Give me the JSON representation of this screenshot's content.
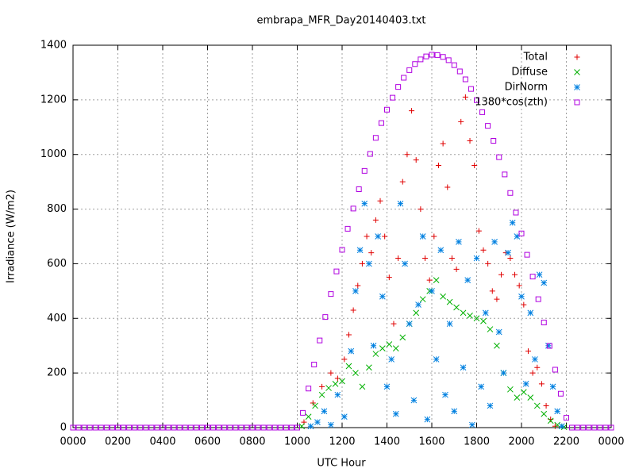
{
  "chart_data": {
    "type": "scatter",
    "title": "embrapa_MFR_Day20140403.txt",
    "xlabel": "UTC Hour",
    "ylabel": "Irradiance (W/m2)",
    "xlim": [
      0,
      24
    ],
    "ylim": [
      0,
      1400
    ],
    "xticks": [
      {
        "value": 0,
        "label": "0000"
      },
      {
        "value": 2,
        "label": "0200"
      },
      {
        "value": 4,
        "label": "0400"
      },
      {
        "value": 6,
        "label": "0600"
      },
      {
        "value": 8,
        "label": "0800"
      },
      {
        "value": 10,
        "label": "1000"
      },
      {
        "value": 12,
        "label": "1200"
      },
      {
        "value": 14,
        "label": "1400"
      },
      {
        "value": 16,
        "label": "1600"
      },
      {
        "value": 18,
        "label": "1800"
      },
      {
        "value": 20,
        "label": "2000"
      },
      {
        "value": 22,
        "label": "2200"
      },
      {
        "value": 24,
        "label": "0000"
      }
    ],
    "yticks": [
      0,
      200,
      400,
      600,
      800,
      1000,
      1200,
      1400
    ],
    "grid": true,
    "legend": "top-right",
    "series": [
      {
        "name": "Total",
        "color": "#e00000",
        "marker": "plus",
        "x": [
          10.3,
          10.7,
          11.1,
          11.5,
          11.8,
          12.1,
          12.3,
          12.5,
          12.7,
          12.9,
          13.1,
          13.3,
          13.5,
          13.7,
          13.9,
          14.1,
          14.3,
          14.5,
          14.7,
          14.9,
          15.1,
          15.3,
          15.5,
          15.7,
          15.9,
          16.1,
          16.3,
          16.5,
          16.7,
          16.9,
          17.1,
          17.3,
          17.5,
          17.7,
          17.9,
          18.1,
          18.3,
          18.5,
          18.7,
          18.9,
          19.1,
          19.3,
          19.5,
          19.7,
          19.9,
          20.1,
          20.3,
          20.5,
          20.7,
          20.9,
          21.1,
          21.3,
          21.5
        ],
        "values": [
          20,
          90,
          150,
          200,
          180,
          250,
          340,
          430,
          520,
          600,
          700,
          640,
          760,
          830,
          700,
          550,
          380,
          620,
          900,
          1000,
          1160,
          980,
          800,
          620,
          540,
          700,
          960,
          1040,
          880,
          620,
          580,
          1120,
          1210,
          1050,
          960,
          720,
          650,
          600,
          500,
          470,
          560,
          640,
          620,
          560,
          520,
          450,
          280,
          200,
          220,
          160,
          80,
          30,
          5
        ]
      },
      {
        "name": "Diffuse",
        "color": "#00b000",
        "marker": "cross",
        "x": [
          10.2,
          10.5,
          10.8,
          11.1,
          11.4,
          11.7,
          12,
          12.3,
          12.6,
          12.9,
          13.2,
          13.5,
          13.8,
          14.1,
          14.4,
          14.7,
          15,
          15.3,
          15.6,
          15.9,
          16.2,
          16.5,
          16.8,
          17.1,
          17.4,
          17.7,
          18,
          18.3,
          18.6,
          18.9,
          19.2,
          19.5,
          19.8,
          20.1,
          20.4,
          20.7,
          21,
          21.3,
          21.6,
          21.9
        ],
        "values": [
          5,
          40,
          80,
          120,
          145,
          160,
          170,
          225,
          200,
          150,
          220,
          270,
          290,
          305,
          290,
          330,
          380,
          420,
          470,
          500,
          540,
          480,
          460,
          440,
          420,
          410,
          400,
          390,
          360,
          300,
          200,
          140,
          110,
          130,
          110,
          80,
          50,
          25,
          10,
          2
        ]
      },
      {
        "name": "DirNorm",
        "color": "#0080e0",
        "marker": "star",
        "x": [
          10.6,
          10.9,
          11.2,
          11.5,
          11.8,
          12.1,
          12.4,
          12.6,
          12.8,
          13,
          13.2,
          13.4,
          13.6,
          13.8,
          14,
          14.2,
          14.4,
          14.6,
          14.8,
          15,
          15.2,
          15.4,
          15.6,
          15.8,
          16,
          16.2,
          16.4,
          16.6,
          16.8,
          17,
          17.2,
          17.4,
          17.6,
          17.8,
          18,
          18.2,
          18.4,
          18.6,
          18.8,
          19,
          19.2,
          19.4,
          19.6,
          19.8,
          20,
          20.2,
          20.4,
          20.6,
          20.8,
          21,
          21.2,
          21.4,
          21.6,
          21.8
        ],
        "values": [
          5,
          20,
          60,
          10,
          120,
          40,
          280,
          500,
          650,
          820,
          600,
          300,
          700,
          480,
          150,
          250,
          50,
          820,
          600,
          380,
          100,
          450,
          700,
          30,
          500,
          250,
          650,
          120,
          380,
          60,
          680,
          220,
          540,
          10,
          620,
          150,
          420,
          80,
          680,
          350,
          200,
          640,
          750,
          700,
          480,
          160,
          420,
          250,
          560,
          530,
          300,
          150,
          60,
          5
        ]
      },
      {
        "name": "1380*cos(zth)",
        "color": "#b000e0",
        "marker": "square",
        "x": [
          0,
          0.25,
          0.5,
          0.75,
          1,
          1.25,
          1.5,
          1.75,
          2,
          2.25,
          2.5,
          2.75,
          3,
          3.25,
          3.5,
          3.75,
          4,
          4.25,
          4.5,
          4.75,
          5,
          5.25,
          5.5,
          5.75,
          6,
          6.25,
          6.5,
          6.75,
          7,
          7.25,
          7.5,
          7.75,
          8,
          8.25,
          8.5,
          8.75,
          9,
          9.25,
          9.5,
          9.75,
          10,
          10.25,
          10.5,
          10.75,
          11,
          11.25,
          11.5,
          11.75,
          12,
          12.25,
          12.5,
          12.75,
          13,
          13.25,
          13.5,
          13.75,
          14,
          14.25,
          14.5,
          14.75,
          15,
          15.25,
          15.5,
          15.75,
          16,
          16.25,
          16.5,
          16.75,
          17,
          17.25,
          17.5,
          17.75,
          18,
          18.25,
          18.5,
          18.75,
          19,
          19.25,
          19.5,
          19.75,
          20,
          20.25,
          20.5,
          20.75,
          21,
          21.25,
          21.5,
          21.75,
          22,
          22.25,
          22.5,
          22.75,
          23,
          23.25,
          23.5,
          23.75,
          24
        ],
        "values": [
          0,
          0,
          0,
          0,
          0,
          0,
          0,
          0,
          0,
          0,
          0,
          0,
          0,
          0,
          0,
          0,
          0,
          0,
          0,
          0,
          0,
          0,
          0,
          0,
          0,
          0,
          0,
          0,
          0,
          0,
          0,
          0,
          0,
          0,
          0,
          0,
          0,
          0,
          0,
          0,
          0,
          54,
          143,
          231,
          319,
          405,
          489,
          572,
          651,
          728,
          802,
          873,
          940,
          1002,
          1061,
          1115,
          1164,
          1208,
          1247,
          1281,
          1309,
          1331,
          1348,
          1359,
          1365,
          1364,
          1357,
          1345,
          1327,
          1304,
          1275,
          1240,
          1199,
          1155,
          1105,
          1050,
          990,
          927,
          859,
          787,
          711,
          633,
          553,
          470,
          385,
          299,
          212,
          124,
          36,
          0,
          0,
          0,
          0,
          0,
          0,
          0,
          0
        ]
      }
    ]
  }
}
